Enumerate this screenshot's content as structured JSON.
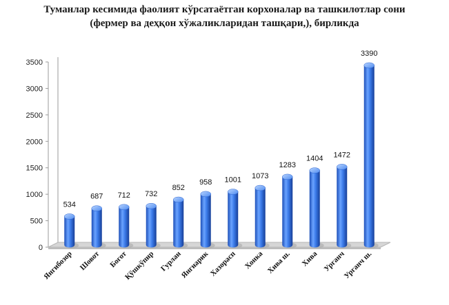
{
  "chart_data": {
    "type": "bar",
    "title_line1": "Туманлар кесимида фаолият кўрсатаётган корхоналар ва ташкилотлар сони",
    "title_line2": "(фермер ва деҳқон хўжаликларидан ташқари,), бирликда",
    "categories": [
      "Янгибозор",
      "Шовот",
      "Богот",
      "Қўшкўпир",
      "Гурлан",
      "Янгиарик",
      "Хазорасп",
      "Хонка",
      "Хива ш.",
      "Хива",
      "Урганч",
      "Урганч ш."
    ],
    "values": [
      534,
      687,
      712,
      732,
      852,
      958,
      1001,
      1073,
      1283,
      1404,
      1472,
      3390
    ],
    "data_labels": [
      "534",
      "687",
      "712",
      "732",
      "852",
      "958",
      "1001",
      "1073",
      "1283",
      "1404",
      "1472",
      "3390"
    ],
    "y_ticks": [
      "0",
      "500",
      "1000",
      "1500",
      "2000",
      "2500",
      "3000",
      "3500"
    ],
    "y_tick_values": [
      0,
      500,
      1000,
      1500,
      2000,
      2500,
      3000,
      3500
    ],
    "ylim": [
      0,
      3500
    ],
    "grid": false,
    "legend": "none",
    "bar_color": "#2f6fe0",
    "bar_color_light": "#7fb0ff",
    "bar_color_dark": "#1a47a8",
    "floor_color": "#d6d6d6"
  }
}
